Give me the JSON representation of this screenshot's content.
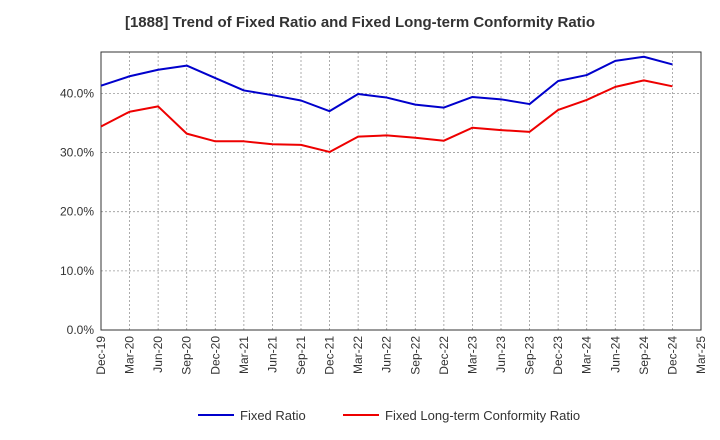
{
  "chart_data": {
    "type": "line",
    "title": "[1888]  Trend of Fixed Ratio and Fixed Long-term Conformity Ratio",
    "xlabel": "",
    "ylabel": "",
    "categories": [
      "Dec-19",
      "Mar-20",
      "Jun-20",
      "Sep-20",
      "Dec-20",
      "Mar-21",
      "Jun-21",
      "Sep-21",
      "Dec-21",
      "Mar-22",
      "Jun-22",
      "Sep-22",
      "Dec-22",
      "Mar-23",
      "Jun-23",
      "Sep-23",
      "Dec-23",
      "Mar-24",
      "Jun-24",
      "Sep-24",
      "Dec-24",
      "Mar-25"
    ],
    "y_ticks": [
      "0.0%",
      "10.0%",
      "20.0%",
      "30.0%",
      "40.0%"
    ],
    "ylim": [
      0,
      47
    ],
    "grid": true,
    "legend_position": "bottom",
    "series": [
      {
        "name": "Fixed Ratio",
        "color": "#0000cc",
        "values": [
          41.3,
          42.9,
          44.0,
          44.7,
          42.6,
          40.5,
          39.7,
          38.8,
          37.0,
          39.9,
          39.3,
          38.1,
          37.6,
          39.4,
          39.0,
          38.2,
          42.1,
          43.1,
          45.5,
          46.2,
          44.9,
          null
        ]
      },
      {
        "name": "Fixed Long-term Conformity Ratio",
        "color": "#ee0000",
        "values": [
          34.4,
          36.9,
          37.8,
          33.2,
          31.9,
          31.9,
          31.4,
          31.3,
          30.1,
          32.7,
          32.9,
          32.5,
          32.0,
          34.2,
          33.8,
          33.5,
          37.2,
          38.9,
          41.1,
          42.2,
          41.2,
          null
        ]
      }
    ]
  }
}
